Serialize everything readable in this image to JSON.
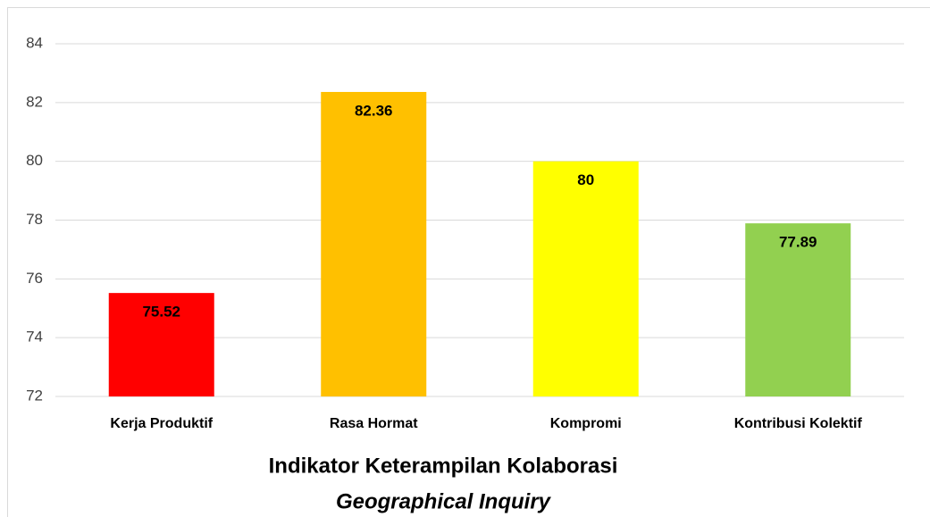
{
  "chart_data": {
    "type": "bar",
    "title": "Indikator Keterampilan Kolaborasi",
    "subtitle": "Geographical Inquiry",
    "categories": [
      "Kerja Produktif",
      "Rasa Hormat",
      "Kompromi",
      "Kontribusi Kolektif"
    ],
    "values": [
      75.52,
      82.36,
      80,
      77.89
    ],
    "colors": [
      "#ff0000",
      "#ffc000",
      "#ffff00",
      "#92d050"
    ],
    "ylim": [
      72,
      84
    ],
    "yticks": [
      72,
      74,
      76,
      78,
      80,
      82,
      84
    ],
    "grid": true
  }
}
